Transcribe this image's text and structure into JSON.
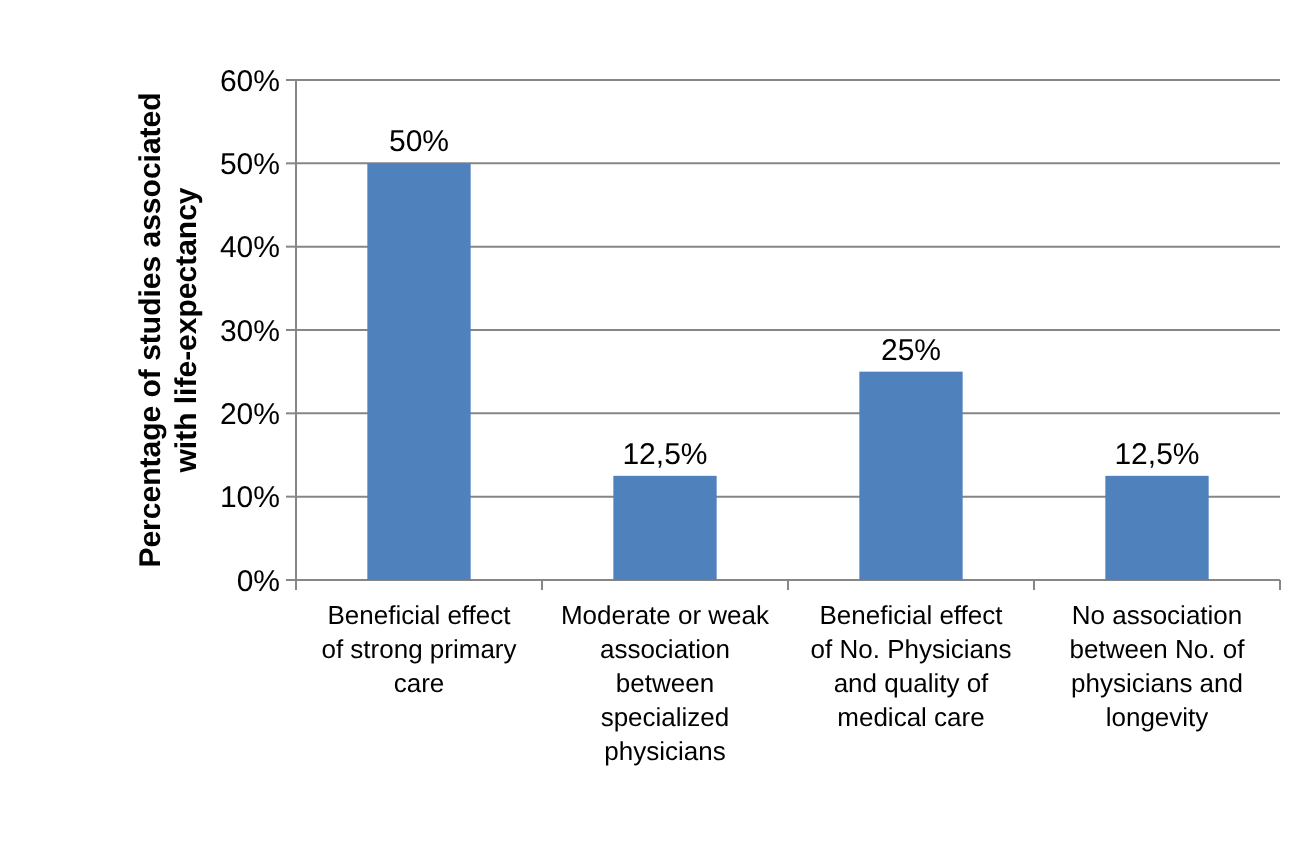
{
  "chart_data": {
    "type": "bar",
    "ylabel": "Percentage of studies associated with life-expectancy",
    "categories": [
      "Beneficial effect of strong primary care",
      "Moderate or weak association between specialized physicians",
      "Beneficial effect of No. Physicians and quality of medical care",
      "No association between No. of physicians and longevity"
    ],
    "values": [
      50,
      12.5,
      25,
      12.5
    ],
    "color": "#4f81bd",
    "value_labels": [
      "50%",
      "12,5%",
      "25%",
      "12,5%"
    ],
    "ylim": [
      0,
      60
    ],
    "yticks": [
      {
        "value": 0,
        "label": "0%"
      },
      {
        "value": 10,
        "label": "10%"
      },
      {
        "value": 20,
        "label": "20%"
      },
      {
        "value": 30,
        "label": "30%"
      },
      {
        "value": 40,
        "label": "40%"
      },
      {
        "value": 50,
        "label": "50%"
      },
      {
        "value": 60,
        "label": "60%"
      }
    ],
    "grid": "y"
  }
}
